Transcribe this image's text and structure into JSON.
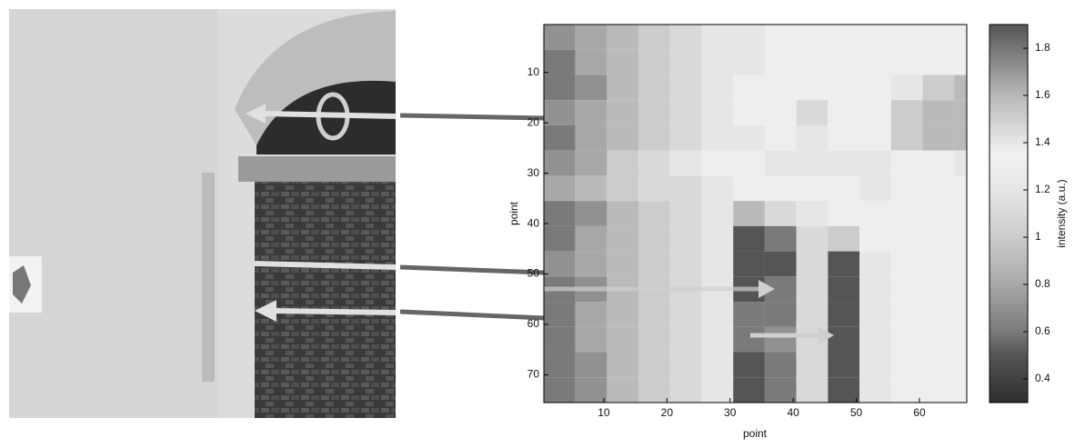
{
  "chart_data": {
    "type": "heatmap",
    "xlabel": "point",
    "ylabel": "point",
    "x_edges": [
      0.5,
      5.5,
      10.5,
      15.5,
      20.5,
      25.5,
      30.5,
      35.5,
      40.5,
      45.5,
      50.5,
      55.5,
      60.5,
      65.5,
      67.5
    ],
    "y_edges": [
      0.5,
      5.5,
      10.5,
      15.5,
      20.5,
      25.5,
      30.5,
      35.5,
      40.5,
      45.5,
      50.5,
      55.5,
      60.5,
      65.5,
      70.5,
      75.5
    ],
    "z": [
      [
        0.7,
        0.8,
        0.9,
        1.0,
        1.1,
        1.2,
        1.2,
        1.3,
        1.3,
        1.3,
        1.3,
        1.3,
        1.3,
        1.3
      ],
      [
        0.6,
        0.8,
        0.9,
        1.0,
        1.1,
        1.2,
        1.2,
        1.3,
        1.3,
        1.3,
        1.3,
        1.3,
        1.3,
        1.3
      ],
      [
        0.6,
        0.7,
        0.9,
        1.0,
        1.1,
        1.2,
        1.3,
        1.3,
        1.3,
        1.3,
        1.3,
        1.2,
        1.0,
        0.9
      ],
      [
        0.7,
        0.8,
        0.9,
        1.0,
        1.1,
        1.2,
        1.3,
        1.3,
        1.1,
        1.3,
        1.3,
        1.0,
        0.9,
        0.9
      ],
      [
        0.6,
        0.8,
        0.9,
        1.0,
        1.1,
        1.2,
        1.2,
        1.3,
        1.2,
        1.3,
        1.3,
        1.0,
        0.9,
        0.9
      ],
      [
        0.7,
        0.8,
        1.0,
        1.1,
        1.2,
        1.3,
        1.3,
        1.4,
        1.4,
        1.4,
        1.4,
        1.3,
        1.3,
        1.4
      ],
      [
        0.8,
        0.9,
        1.0,
        1.1,
        1.1,
        1.2,
        1.3,
        1.3,
        1.3,
        1.3,
        1.2,
        1.3,
        1.3,
        1.3
      ],
      [
        0.6,
        0.7,
        0.9,
        1.0,
        1.1,
        1.2,
        0.9,
        1.1,
        1.2,
        1.3,
        1.3,
        1.3,
        1.3,
        1.3
      ],
      [
        0.6,
        0.8,
        0.9,
        1.0,
        1.1,
        1.2,
        0.5,
        0.6,
        1.1,
        1.0,
        1.3,
        1.3,
        1.3,
        1.3
      ],
      [
        0.7,
        0.8,
        0.9,
        1.0,
        1.1,
        1.2,
        0.5,
        0.5,
        1.1,
        0.5,
        1.2,
        1.3,
        1.3,
        1.3
      ],
      [
        0.6,
        0.7,
        0.9,
        1.0,
        1.1,
        1.2,
        0.5,
        0.6,
        1.1,
        0.5,
        1.2,
        1.3,
        1.3,
        1.3
      ],
      [
        0.6,
        0.8,
        0.9,
        1.0,
        1.1,
        1.2,
        0.6,
        0.6,
        1.1,
        0.5,
        1.2,
        1.3,
        1.3,
        1.3
      ],
      [
        0.6,
        0.8,
        0.9,
        1.0,
        1.1,
        1.2,
        0.6,
        0.7,
        1.1,
        0.5,
        1.2,
        1.3,
        1.3,
        1.3
      ],
      [
        0.6,
        0.7,
        0.9,
        1.0,
        1.1,
        1.2,
        0.5,
        0.6,
        1.1,
        0.5,
        1.2,
        1.3,
        1.3,
        1.3
      ],
      [
        0.6,
        0.7,
        0.9,
        1.0,
        1.1,
        1.2,
        0.5,
        0.6,
        1.1,
        0.5,
        1.2,
        1.3,
        1.3,
        1.3
      ]
    ],
    "xlim": [
      0.5,
      67.5
    ],
    "ylim": [
      0.5,
      75.5
    ],
    "y_reversed": true,
    "xticks": [
      10,
      20,
      30,
      40,
      50,
      60
    ],
    "yticks": [
      10,
      20,
      30,
      40,
      50,
      60,
      70
    ],
    "colorbar": {
      "label": "intensity (a.u.)",
      "lim": [
        0.3,
        1.9
      ],
      "ticks": [
        0.4,
        0.6,
        0.8,
        1,
        1.2,
        1.4,
        1.6,
        1.8
      ]
    },
    "colormap": [
      [
        0.3,
        "#2e2e2e"
      ],
      [
        0.5,
        "#555555"
      ],
      [
        0.6,
        "#7a7a7a"
      ],
      [
        0.8,
        "#a8a8a8"
      ],
      [
        1.0,
        "#cccccc"
      ],
      [
        1.2,
        "#e6e6e6"
      ],
      [
        1.35,
        "#f2f2f2"
      ],
      [
        1.6,
        "#b8b8b8"
      ],
      [
        1.9,
        "#555555"
      ]
    ]
  }
}
